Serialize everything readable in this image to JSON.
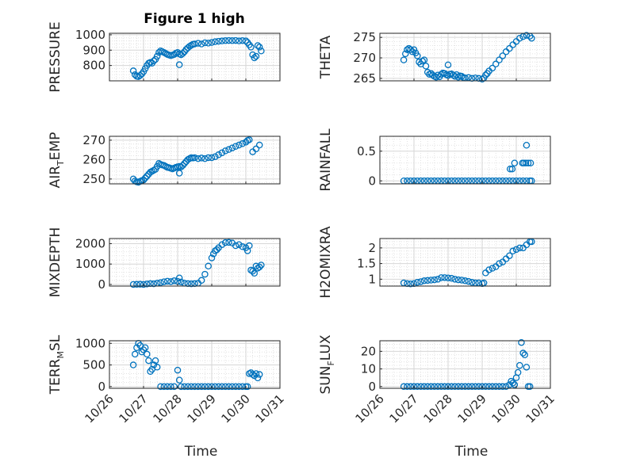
{
  "figure": {
    "title": "Figure 1 high"
  },
  "colors": {
    "marker": "#0072BD",
    "axis": "#262626",
    "grid": "#dcdcdc"
  },
  "x_axis": {
    "label": "Time",
    "ticks": [
      "10/26",
      "10/27",
      "10/28",
      "10/29",
      "10/30",
      "10/31"
    ],
    "tick_values": [
      26,
      27,
      28,
      29,
      30,
      31
    ],
    "range": [
      26,
      31
    ]
  },
  "chart_data": [
    {
      "type": "scatter",
      "panel": "pressure",
      "ylabel": {
        "main": "PRESSURE",
        "sub": "",
        "rest": ""
      },
      "ylim": [
        700,
        1010
      ],
      "yticks": [
        800,
        900,
        1000
      ],
      "yticklabels": [
        "800",
        "900",
        "1000"
      ],
      "xlim": [
        26,
        31
      ],
      "grid": true,
      "minor_grid": true,
      "x": [
        26.7,
        26.75,
        26.8,
        26.85,
        26.9,
        26.95,
        27.0,
        27.05,
        27.1,
        27.15,
        27.2,
        27.25,
        27.3,
        27.35,
        27.4,
        27.45,
        27.5,
        27.55,
        27.6,
        27.65,
        27.7,
        27.75,
        27.8,
        27.85,
        27.9,
        27.95,
        28.0,
        28.05,
        28.1,
        28.15,
        28.2,
        28.25,
        28.3,
        28.35,
        28.4,
        28.45,
        28.5,
        28.6,
        28.7,
        28.8,
        28.9,
        29.0,
        29.1,
        29.2,
        29.3,
        29.4,
        29.5,
        29.6,
        29.7,
        29.8,
        29.9,
        30.0,
        30.05,
        30.1,
        30.15,
        30.2,
        30.25,
        30.3,
        30.35,
        30.4,
        30.45,
        28.05
      ],
      "y": [
        765,
        740,
        730,
        728,
        735,
        745,
        760,
        780,
        800,
        815,
        820,
        815,
        830,
        840,
        860,
        885,
        895,
        890,
        885,
        878,
        872,
        868,
        865,
        868,
        872,
        880,
        885,
        875,
        870,
        878,
        890,
        905,
        915,
        925,
        932,
        938,
        940,
        945,
        940,
        948,
        946,
        950,
        955,
        958,
        960,
        962,
        963,
        962,
        963,
        960,
        962,
        960,
        950,
        935,
        920,
        870,
        850,
        860,
        930,
        920,
        895,
        805
      ]
    },
    {
      "type": "scatter",
      "panel": "theta",
      "ylabel": {
        "main": "THETA",
        "sub": "",
        "rest": ""
      },
      "ylim": [
        264.4,
        276
      ],
      "yticks": [
        265,
        270,
        275
      ],
      "yticklabels": [
        "265",
        "270",
        "275"
      ],
      "xlim": [
        26,
        31
      ],
      "grid": true,
      "minor_grid": true,
      "x": [
        26.7,
        26.75,
        26.8,
        26.85,
        26.9,
        26.95,
        27.0,
        27.05,
        27.1,
        27.15,
        27.2,
        27.25,
        27.3,
        27.35,
        27.4,
        27.45,
        27.5,
        27.55,
        27.6,
        27.65,
        27.7,
        27.75,
        27.8,
        27.85,
        27.9,
        27.95,
        28.0,
        28.05,
        28.1,
        28.15,
        28.2,
        28.25,
        28.3,
        28.35,
        28.4,
        28.45,
        28.5,
        28.6,
        28.7,
        28.8,
        28.9,
        29.0,
        29.05,
        29.1,
        29.15,
        29.2,
        29.3,
        29.4,
        29.5,
        29.6,
        29.7,
        29.8,
        29.9,
        30.0,
        30.1,
        30.2,
        30.3,
        30.4,
        30.45,
        28.0
      ],
      "y": [
        269.5,
        271,
        272,
        272.3,
        272,
        271.5,
        272,
        271.2,
        270.5,
        269,
        268.5,
        269.2,
        269.5,
        268,
        266.5,
        266,
        266.2,
        265.8,
        265.5,
        265.3,
        265.8,
        265.4,
        266,
        266.3,
        266.2,
        265.9,
        265.7,
        266,
        266.1,
        265.8,
        265.5,
        265.9,
        265.3,
        265.6,
        265.5,
        265.2,
        265.1,
        265.2,
        265.0,
        265.1,
        265.0,
        264.8,
        265.1,
        265.8,
        266.2,
        266.8,
        267.5,
        268.5,
        269.5,
        270.5,
        271.5,
        272.3,
        273.2,
        274,
        274.8,
        275.2,
        275.5,
        275.3,
        274.8,
        268.3
      ]
    },
    {
      "type": "scatter",
      "panel": "air_temp",
      "ylabel": {
        "main": "AIR",
        "sub": "T",
        "rest": "EMP"
      },
      "ylim": [
        247.5,
        272
      ],
      "yticks": [
        250,
        260,
        270
      ],
      "yticklabels": [
        "250",
        "260",
        "270"
      ],
      "xlim": [
        26,
        31
      ],
      "grid": true,
      "minor_grid": true,
      "x": [
        26.7,
        26.75,
        26.8,
        26.85,
        26.9,
        26.95,
        27.0,
        27.05,
        27.1,
        27.15,
        27.2,
        27.25,
        27.3,
        27.35,
        27.4,
        27.45,
        27.5,
        27.55,
        27.6,
        27.65,
        27.7,
        27.75,
        27.8,
        27.85,
        27.9,
        27.95,
        28.0,
        28.05,
        28.1,
        28.15,
        28.2,
        28.25,
        28.3,
        28.35,
        28.4,
        28.45,
        28.5,
        28.6,
        28.7,
        28.8,
        28.9,
        29.0,
        29.1,
        29.2,
        29.3,
        29.4,
        29.5,
        29.6,
        29.7,
        29.8,
        29.9,
        30.0,
        30.05,
        30.1,
        30.2,
        30.3,
        30.4,
        28.05
      ],
      "y": [
        250,
        249,
        248.5,
        248.3,
        248.8,
        249.2,
        249.5,
        250.5,
        251.5,
        252.5,
        253.5,
        254,
        254.5,
        255,
        256.5,
        258,
        257.5,
        257.2,
        257,
        256.5,
        256,
        255.8,
        255.5,
        255.2,
        255.6,
        256,
        256.3,
        256.5,
        256.2,
        257,
        258,
        259,
        260,
        260.5,
        261,
        260.8,
        261,
        260.5,
        260.8,
        260.5,
        261,
        261,
        261.5,
        262.5,
        263.5,
        264.5,
        265.2,
        266,
        266.8,
        267.5,
        268.2,
        269,
        269.8,
        270.2,
        264,
        265.5,
        267.5,
        253
      ]
    },
    {
      "type": "scatter",
      "panel": "rainfall",
      "ylabel": {
        "main": "RAINFALL",
        "sub": "",
        "rest": ""
      },
      "ylim": [
        -0.05,
        0.75
      ],
      "yticks": [
        0,
        0.5
      ],
      "yticklabels": [
        "0",
        "0.5"
      ],
      "xlim": [
        26,
        31
      ],
      "grid": true,
      "minor_grid": true,
      "x": [
        26.7,
        26.8,
        26.9,
        27.0,
        27.1,
        27.2,
        27.3,
        27.4,
        27.5,
        27.6,
        27.7,
        27.8,
        27.9,
        28.0,
        28.1,
        28.2,
        28.3,
        28.4,
        28.5,
        28.6,
        28.7,
        28.8,
        28.9,
        29.0,
        29.1,
        29.2,
        29.3,
        29.4,
        29.5,
        29.6,
        29.7,
        29.8,
        29.9,
        30.0,
        30.1,
        30.2,
        30.3,
        30.4,
        29.82,
        29.88,
        29.95,
        30.18,
        30.22,
        30.28,
        30.3,
        30.35,
        30.42,
        30.45
      ],
      "y": [
        0,
        0,
        0,
        0,
        0,
        0,
        0,
        0,
        0,
        0,
        0,
        0,
        0,
        0,
        0,
        0,
        0,
        0,
        0,
        0,
        0,
        0,
        0,
        0,
        0,
        0,
        0,
        0,
        0,
        0,
        0,
        0,
        0,
        0,
        0,
        0,
        0,
        0,
        0.2,
        0.2,
        0.3,
        0.3,
        0.3,
        0.3,
        0.6,
        0.3,
        0.3,
        0
      ]
    },
    {
      "type": "scatter",
      "panel": "mixdepth",
      "ylabel": {
        "main": "MIXDEPTH",
        "sub": "",
        "rest": ""
      },
      "ylim": [
        -80,
        2250
      ],
      "yticks": [
        0,
        1000,
        2000
      ],
      "yticklabels": [
        "0",
        "1000",
        "2000"
      ],
      "xlim": [
        26,
        31
      ],
      "grid": true,
      "minor_grid": true,
      "x": [
        26.7,
        26.8,
        26.9,
        27.0,
        27.1,
        27.2,
        27.3,
        27.4,
        27.5,
        27.6,
        27.7,
        27.8,
        27.9,
        28.0,
        28.05,
        28.1,
        28.2,
        28.3,
        28.4,
        28.5,
        28.6,
        28.7,
        28.8,
        28.9,
        29.0,
        29.05,
        29.1,
        29.15,
        29.2,
        29.3,
        29.4,
        29.5,
        29.6,
        29.7,
        29.8,
        29.9,
        30.0,
        30.05,
        30.1,
        30.15,
        30.2,
        30.25,
        30.3,
        30.35,
        30.4,
        30.45
      ],
      "y": [
        0,
        5,
        10,
        0,
        20,
        40,
        30,
        60,
        90,
        130,
        160,
        140,
        180,
        150,
        320,
        120,
        60,
        40,
        30,
        40,
        60,
        200,
        500,
        900,
        1300,
        1500,
        1650,
        1700,
        1800,
        1950,
        2050,
        2060,
        2030,
        1900,
        1950,
        1850,
        1800,
        1650,
        1900,
        700,
        650,
        550,
        900,
        800,
        850,
        950
      ]
    },
    {
      "type": "scatter",
      "panel": "h2omixra",
      "ylabel": {
        "main": "H2OMIXRA",
        "sub": "",
        "rest": ""
      },
      "ylim": [
        0.78,
        2.3
      ],
      "yticks": [
        1,
        1.5,
        2
      ],
      "yticklabels": [
        "1",
        "1.5",
        "2"
      ],
      "xlim": [
        26,
        31
      ],
      "grid": true,
      "minor_grid": true,
      "x": [
        26.7,
        26.8,
        26.9,
        27.0,
        27.1,
        27.2,
        27.3,
        27.4,
        27.5,
        27.6,
        27.7,
        27.8,
        27.9,
        28.0,
        28.1,
        28.2,
        28.3,
        28.4,
        28.5,
        28.6,
        28.7,
        28.8,
        28.9,
        29.0,
        29.05,
        29.1,
        29.2,
        29.3,
        29.4,
        29.5,
        29.6,
        29.7,
        29.8,
        29.9,
        30.0,
        30.1,
        30.2,
        30.3,
        30.4,
        30.45
      ],
      "y": [
        0.88,
        0.86,
        0.85,
        0.86,
        0.9,
        0.92,
        0.95,
        0.96,
        0.97,
        0.98,
        1.0,
        1.05,
        1.05,
        1.04,
        1.03,
        1.0,
        0.98,
        0.97,
        0.95,
        0.93,
        0.9,
        0.88,
        0.88,
        0.86,
        0.88,
        1.2,
        1.3,
        1.35,
        1.4,
        1.5,
        1.55,
        1.65,
        1.75,
        1.9,
        1.95,
        2.0,
        2.0,
        2.1,
        2.2,
        2.2
      ]
    },
    {
      "type": "scatter",
      "panel": "terr_msl",
      "ylabel": {
        "main": "TERR",
        "sub": "M",
        "rest": "SL"
      },
      "ylim": [
        -40,
        1060
      ],
      "yticks": [
        0,
        500,
        1000
      ],
      "yticklabels": [
        "0",
        "500",
        "1000"
      ],
      "xlim": [
        26,
        31
      ],
      "grid": true,
      "minor_grid": true,
      "x": [
        26.7,
        26.75,
        26.8,
        26.85,
        26.9,
        26.95,
        27.0,
        27.05,
        27.1,
        27.15,
        27.2,
        27.25,
        27.3,
        27.35,
        27.4,
        27.5,
        27.6,
        27.7,
        27.8,
        27.9,
        28.0,
        28.05,
        28.1,
        28.2,
        28.3,
        28.4,
        28.5,
        28.6,
        28.7,
        28.8,
        28.9,
        29.0,
        29.1,
        29.2,
        29.3,
        29.4,
        29.5,
        29.6,
        29.7,
        29.8,
        29.9,
        30.0,
        30.05,
        30.1,
        30.15,
        30.2,
        30.25,
        30.3,
        30.35,
        30.4
      ],
      "y": [
        500,
        750,
        900,
        1000,
        950,
        800,
        850,
        900,
        750,
        600,
        350,
        400,
        500,
        600,
        450,
        0,
        0,
        0,
        0,
        0,
        380,
        150,
        0,
        0,
        0,
        0,
        0,
        0,
        0,
        0,
        0,
        0,
        0,
        0,
        0,
        0,
        0,
        0,
        0,
        0,
        0,
        0,
        0,
        300,
        320,
        280,
        250,
        300,
        200,
        280
      ]
    },
    {
      "type": "scatter",
      "panel": "sun_flux",
      "ylabel": {
        "main": "SUN",
        "sub": "F",
        "rest": "LUX"
      },
      "ylim": [
        -1,
        26
      ],
      "yticks": [
        0,
        10,
        20
      ],
      "yticklabels": [
        "0",
        "10",
        "20"
      ],
      "xlim": [
        26,
        31
      ],
      "grid": true,
      "minor_grid": true,
      "x": [
        26.7,
        26.8,
        26.9,
        27.0,
        27.1,
        27.2,
        27.3,
        27.4,
        27.5,
        27.6,
        27.7,
        27.8,
        27.9,
        28.0,
        28.1,
        28.2,
        28.3,
        28.4,
        28.5,
        28.6,
        28.7,
        28.8,
        28.9,
        29.0,
        29.1,
        29.2,
        29.3,
        29.4,
        29.5,
        29.6,
        29.7,
        29.8,
        29.85,
        29.9,
        29.95,
        30.0,
        30.05,
        30.1,
        30.15,
        30.2,
        30.25,
        30.3,
        30.35,
        30.4
      ],
      "y": [
        0,
        0,
        0,
        0,
        0,
        0,
        0,
        0,
        0,
        0,
        0,
        0,
        0,
        0,
        0,
        0,
        0,
        0,
        0,
        0,
        0,
        0,
        0,
        0,
        0,
        0,
        0,
        0,
        0,
        0,
        0,
        1,
        3,
        2,
        1,
        5,
        8,
        12,
        25,
        19,
        18,
        11,
        0,
        0
      ]
    }
  ]
}
